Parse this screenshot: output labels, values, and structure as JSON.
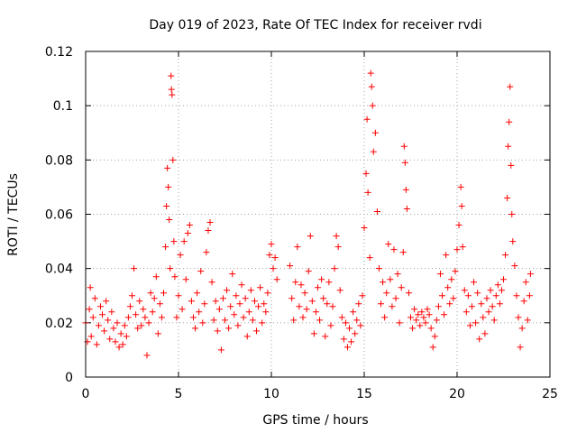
{
  "chart_data": {
    "type": "scatter",
    "title": "Day 019 of 2023, Rate Of TEC Index for receiver rvdi",
    "xlabel": "GPS time / hours",
    "ylabel": "ROTI / TECUs",
    "xlim": [
      0,
      25
    ],
    "ylim": [
      0,
      0.12
    ],
    "x_ticks": [
      "0",
      "5",
      "10",
      "15",
      "20",
      "25"
    ],
    "y_ticks": [
      "0",
      "0.02",
      "0.04",
      "0.06",
      "0.08",
      "0.1",
      "0.12"
    ],
    "grid": true,
    "legend": "none",
    "marker": "+",
    "series": [
      {
        "color": "#ff0000",
        "points": [
          [
            0.0,
            0.02
          ],
          [
            0.1,
            0.013
          ],
          [
            0.2,
            0.025
          ],
          [
            0.25,
            0.033
          ],
          [
            0.3,
            0.015
          ],
          [
            0.4,
            0.022
          ],
          [
            0.5,
            0.029
          ],
          [
            0.6,
            0.012
          ],
          [
            0.7,
            0.019
          ],
          [
            0.8,
            0.026
          ],
          [
            0.9,
            0.023
          ],
          [
            1.0,
            0.017
          ],
          [
            1.1,
            0.028
          ],
          [
            1.2,
            0.021
          ],
          [
            1.3,
            0.014
          ],
          [
            1.4,
            0.024
          ],
          [
            1.5,
            0.018
          ],
          [
            1.6,
            0.013
          ],
          [
            1.7,
            0.02
          ],
          [
            1.8,
            0.011
          ],
          [
            1.9,
            0.016
          ],
          [
            2.0,
            0.012
          ],
          [
            2.1,
            0.019
          ],
          [
            2.2,
            0.015
          ],
          [
            2.3,
            0.022
          ],
          [
            2.4,
            0.026
          ],
          [
            2.5,
            0.03
          ],
          [
            2.6,
            0.04
          ],
          [
            2.7,
            0.023
          ],
          [
            2.8,
            0.018
          ],
          [
            2.9,
            0.028
          ],
          [
            3.0,
            0.019
          ],
          [
            3.1,
            0.025
          ],
          [
            3.2,
            0.022
          ],
          [
            3.3,
            0.008
          ],
          [
            3.4,
            0.02
          ],
          [
            3.5,
            0.031
          ],
          [
            3.6,
            0.024
          ],
          [
            3.7,
            0.029
          ],
          [
            3.8,
            0.037
          ],
          [
            3.9,
            0.016
          ],
          [
            4.0,
            0.027
          ],
          [
            4.1,
            0.022
          ],
          [
            4.2,
            0.031
          ],
          [
            4.3,
            0.048
          ],
          [
            4.35,
            0.063
          ],
          [
            4.4,
            0.077
          ],
          [
            4.45,
            0.07
          ],
          [
            4.5,
            0.058
          ],
          [
            4.55,
            0.04
          ],
          [
            4.6,
            0.111
          ],
          [
            4.62,
            0.106
          ],
          [
            4.65,
            0.104
          ],
          [
            4.7,
            0.08
          ],
          [
            4.75,
            0.05
          ],
          [
            4.8,
            0.037
          ],
          [
            4.9,
            0.022
          ],
          [
            5.0,
            0.03
          ],
          [
            5.1,
            0.045
          ],
          [
            5.2,
            0.025
          ],
          [
            5.3,
            0.05
          ],
          [
            5.4,
            0.036
          ],
          [
            5.5,
            0.053
          ],
          [
            5.6,
            0.056
          ],
          [
            5.7,
            0.028
          ],
          [
            5.8,
            0.022
          ],
          [
            5.9,
            0.018
          ],
          [
            6.0,
            0.031
          ],
          [
            6.1,
            0.024
          ],
          [
            6.2,
            0.039
          ],
          [
            6.3,
            0.02
          ],
          [
            6.4,
            0.027
          ],
          [
            6.5,
            0.046
          ],
          [
            6.6,
            0.054
          ],
          [
            6.7,
            0.057
          ],
          [
            6.8,
            0.035
          ],
          [
            6.9,
            0.021
          ],
          [
            7.0,
            0.028
          ],
          [
            7.1,
            0.017
          ],
          [
            7.2,
            0.025
          ],
          [
            7.3,
            0.01
          ],
          [
            7.4,
            0.029
          ],
          [
            7.5,
            0.021
          ],
          [
            7.6,
            0.032
          ],
          [
            7.7,
            0.018
          ],
          [
            7.8,
            0.026
          ],
          [
            7.9,
            0.038
          ],
          [
            8.0,
            0.023
          ],
          [
            8.1,
            0.03
          ],
          [
            8.2,
            0.019
          ],
          [
            8.3,
            0.027
          ],
          [
            8.4,
            0.034
          ],
          [
            8.5,
            0.022
          ],
          [
            8.6,
            0.029
          ],
          [
            8.7,
            0.015
          ],
          [
            8.8,
            0.024
          ],
          [
            8.9,
            0.032
          ],
          [
            9.0,
            0.021
          ],
          [
            9.1,
            0.028
          ],
          [
            9.2,
            0.017
          ],
          [
            9.3,
            0.026
          ],
          [
            9.4,
            0.033
          ],
          [
            9.5,
            0.02
          ],
          [
            9.6,
            0.027
          ],
          [
            9.7,
            0.024
          ],
          [
            9.8,
            0.031
          ],
          [
            9.9,
            0.045
          ],
          [
            10.0,
            0.049
          ],
          [
            10.1,
            0.04
          ],
          [
            10.2,
            0.044
          ],
          [
            10.3,
            0.036
          ],
          [
            11.0,
            0.041
          ],
          [
            11.1,
            0.029
          ],
          [
            11.2,
            0.021
          ],
          [
            11.3,
            0.035
          ],
          [
            11.4,
            0.048
          ],
          [
            11.5,
            0.026
          ],
          [
            11.6,
            0.034
          ],
          [
            11.7,
            0.022
          ],
          [
            11.8,
            0.031
          ],
          [
            11.9,
            0.025
          ],
          [
            12.0,
            0.039
          ],
          [
            12.1,
            0.052
          ],
          [
            12.2,
            0.028
          ],
          [
            12.3,
            0.016
          ],
          [
            12.4,
            0.024
          ],
          [
            12.5,
            0.033
          ],
          [
            12.6,
            0.021
          ],
          [
            12.7,
            0.036
          ],
          [
            12.8,
            0.029
          ],
          [
            12.9,
            0.015
          ],
          [
            13.0,
            0.027
          ],
          [
            13.1,
            0.035
          ],
          [
            13.2,
            0.019
          ],
          [
            13.3,
            0.026
          ],
          [
            13.4,
            0.04
          ],
          [
            13.5,
            0.052
          ],
          [
            13.6,
            0.048
          ],
          [
            13.7,
            0.032
          ],
          [
            13.8,
            0.022
          ],
          [
            13.9,
            0.014
          ],
          [
            14.0,
            0.02
          ],
          [
            14.1,
            0.011
          ],
          [
            14.2,
            0.018
          ],
          [
            14.3,
            0.013
          ],
          [
            14.4,
            0.024
          ],
          [
            14.5,
            0.016
          ],
          [
            14.6,
            0.021
          ],
          [
            14.7,
            0.027
          ],
          [
            14.8,
            0.019
          ],
          [
            14.9,
            0.03
          ],
          [
            15.0,
            0.055
          ],
          [
            15.1,
            0.075
          ],
          [
            15.15,
            0.095
          ],
          [
            15.2,
            0.068
          ],
          [
            15.3,
            0.044
          ],
          [
            15.35,
            0.112
          ],
          [
            15.4,
            0.107
          ],
          [
            15.45,
            0.1
          ],
          [
            15.5,
            0.083
          ],
          [
            15.6,
            0.09
          ],
          [
            15.7,
            0.061
          ],
          [
            15.8,
            0.04
          ],
          [
            15.9,
            0.027
          ],
          [
            16.0,
            0.035
          ],
          [
            16.1,
            0.022
          ],
          [
            16.2,
            0.031
          ],
          [
            16.3,
            0.049
          ],
          [
            16.4,
            0.036
          ],
          [
            16.5,
            0.026
          ],
          [
            16.6,
            0.047
          ],
          [
            16.7,
            0.029
          ],
          [
            16.8,
            0.038
          ],
          [
            16.9,
            0.02
          ],
          [
            17.0,
            0.033
          ],
          [
            17.1,
            0.046
          ],
          [
            17.15,
            0.085
          ],
          [
            17.2,
            0.079
          ],
          [
            17.25,
            0.069
          ],
          [
            17.3,
            0.062
          ],
          [
            17.4,
            0.031
          ],
          [
            17.5,
            0.022
          ],
          [
            17.6,
            0.018
          ],
          [
            17.7,
            0.025
          ],
          [
            17.8,
            0.021
          ],
          [
            17.9,
            0.023
          ],
          [
            18.0,
            0.019
          ],
          [
            18.1,
            0.024
          ],
          [
            18.2,
            0.022
          ],
          [
            18.3,
            0.02
          ],
          [
            18.4,
            0.025
          ],
          [
            18.5,
            0.023
          ],
          [
            18.6,
            0.018
          ],
          [
            18.7,
            0.011
          ],
          [
            18.8,
            0.015
          ],
          [
            18.9,
            0.021
          ],
          [
            19.0,
            0.026
          ],
          [
            19.1,
            0.038
          ],
          [
            19.2,
            0.03
          ],
          [
            19.3,
            0.023
          ],
          [
            19.4,
            0.045
          ],
          [
            19.5,
            0.033
          ],
          [
            19.6,
            0.027
          ],
          [
            19.7,
            0.036
          ],
          [
            19.8,
            0.029
          ],
          [
            19.9,
            0.039
          ],
          [
            20.0,
            0.047
          ],
          [
            20.1,
            0.056
          ],
          [
            20.2,
            0.07
          ],
          [
            20.25,
            0.063
          ],
          [
            20.3,
            0.048
          ],
          [
            20.4,
            0.032
          ],
          [
            20.5,
            0.024
          ],
          [
            20.6,
            0.03
          ],
          [
            20.7,
            0.019
          ],
          [
            20.8,
            0.026
          ],
          [
            20.9,
            0.035
          ],
          [
            21.0,
            0.02
          ],
          [
            21.1,
            0.031
          ],
          [
            21.2,
            0.014
          ],
          [
            21.3,
            0.027
          ],
          [
            21.4,
            0.022
          ],
          [
            21.5,
            0.016
          ],
          [
            21.6,
            0.029
          ],
          [
            21.7,
            0.024
          ],
          [
            21.8,
            0.032
          ],
          [
            21.9,
            0.026
          ],
          [
            22.0,
            0.021
          ],
          [
            22.1,
            0.03
          ],
          [
            22.2,
            0.034
          ],
          [
            22.3,
            0.027
          ],
          [
            22.4,
            0.032
          ],
          [
            22.5,
            0.036
          ],
          [
            22.6,
            0.045
          ],
          [
            22.7,
            0.066
          ],
          [
            22.75,
            0.085
          ],
          [
            22.8,
            0.094
          ],
          [
            22.85,
            0.107
          ],
          [
            22.9,
            0.078
          ],
          [
            22.95,
            0.06
          ],
          [
            23.0,
            0.05
          ],
          [
            23.1,
            0.041
          ],
          [
            23.2,
            0.03
          ],
          [
            23.3,
            0.022
          ],
          [
            23.4,
            0.011
          ],
          [
            23.5,
            0.018
          ],
          [
            23.6,
            0.028
          ],
          [
            23.7,
            0.035
          ],
          [
            23.8,
            0.021
          ],
          [
            23.9,
            0.03
          ],
          [
            23.95,
            0.038
          ]
        ]
      }
    ]
  }
}
